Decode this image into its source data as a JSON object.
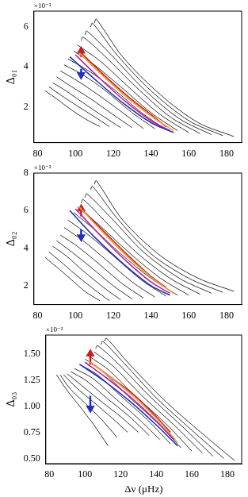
{
  "chart_data": [
    {
      "type": "line",
      "y_label": "Δ₀₁",
      "annotations": [
        "×10⁻³"
      ],
      "xlim": [
        78,
        188
      ],
      "xticks": [
        80,
        100,
        120,
        140,
        160,
        180
      ],
      "ylim": [
        0.2,
        6.8
      ],
      "yticks": [
        2,
        4,
        6
      ],
      "grid": false,
      "series": [
        {
          "color": "#000000",
          "x": [
            184,
            165,
            145,
            125,
            111,
            110
          ],
          "values": [
            0.5,
            1.2,
            2.6,
            4.5,
            6.4,
            6.2
          ]
        },
        {
          "color": "#000000",
          "x": [
            178,
            160,
            140,
            122,
            109,
            108
          ],
          "values": [
            0.55,
            1.3,
            2.8,
            4.6,
            6.2,
            6.0
          ]
        },
        {
          "color": "#000000",
          "x": [
            172,
            155,
            136,
            119,
            106,
            105
          ],
          "values": [
            0.6,
            1.4,
            2.9,
            4.6,
            5.8,
            5.6
          ]
        },
        {
          "color": "#000000",
          "x": [
            166,
            150,
            132,
            116,
            104,
            103
          ],
          "values": [
            0.65,
            1.5,
            3.0,
            4.5,
            5.5,
            5.3
          ]
        },
        {
          "color": "#000000",
          "x": [
            160,
            145,
            128,
            113,
            101
          ],
          "values": [
            0.7,
            1.6,
            3.0,
            4.3,
            5.1
          ]
        },
        {
          "color": "#000000",
          "x": [
            154,
            140,
            124,
            110,
            99
          ],
          "values": [
            0.8,
            1.7,
            3.0,
            4.1,
            4.8
          ]
        },
        {
          "color": "#000000",
          "x": [
            148,
            135,
            120,
            107,
            96
          ],
          "values": [
            0.85,
            1.7,
            2.9,
            3.8,
            4.4
          ]
        },
        {
          "color": "#000000",
          "x": [
            142,
            130,
            116,
            104,
            94
          ],
          "values": [
            0.9,
            1.7,
            2.8,
            3.6,
            4.1
          ]
        },
        {
          "color": "#000000",
          "x": [
            136,
            125,
            112,
            101,
            92
          ],
          "values": [
            0.9,
            1.7,
            2.6,
            3.3,
            3.8
          ]
        },
        {
          "color": "#000000",
          "x": [
            130,
            120,
            108,
            98,
            90
          ],
          "values": [
            0.95,
            1.6,
            2.4,
            3.0,
            3.5
          ]
        },
        {
          "color": "#000000",
          "x": [
            124,
            115,
            104,
            95,
            88
          ],
          "values": [
            0.95,
            1.5,
            2.2,
            2.8,
            3.2
          ]
        },
        {
          "color": "#000000",
          "x": [
            118,
            110,
            100,
            92,
            86
          ],
          "values": [
            1.0,
            1.5,
            2.1,
            2.6,
            3.0
          ]
        },
        {
          "color": "#000000",
          "x": [
            113,
            105,
            97,
            90,
            84
          ],
          "values": [
            1.0,
            1.4,
            1.9,
            2.4,
            2.8
          ]
        },
        {
          "color": "#2030c0",
          "x": [
            97,
            110,
            125,
            140,
            152
          ],
          "values": [
            4.5,
            3.4,
            2.2,
            1.2,
            0.7
          ]
        },
        {
          "color": "#c020a0",
          "x": [
            100,
            112,
            126,
            140,
            150
          ],
          "values": [
            4.6,
            3.5,
            2.3,
            1.3,
            0.8
          ]
        },
        {
          "color": "#f0a030",
          "x": [
            102,
            114,
            128,
            142,
            152
          ],
          "values": [
            4.7,
            3.6,
            2.4,
            1.4,
            0.8
          ]
        },
        {
          "color": "#c02020",
          "x": [
            103,
            115,
            128,
            140,
            148
          ],
          "values": [
            4.7,
            3.6,
            2.5,
            1.6,
            1.0
          ]
        },
        {
          "color": "#c02020",
          "marker": "triangle",
          "x": [
            103,
            103
          ],
          "values": [
            4.5,
            4.8
          ]
        },
        {
          "color": "#2030c0",
          "marker": "triangle",
          "x": [
            103,
            103
          ],
          "values": [
            3.9,
            3.6
          ]
        }
      ]
    },
    {
      "type": "line",
      "y_label": "Δ₀₂",
      "annotations": [
        "×10⁻³"
      ],
      "xlim": [
        78,
        188
      ],
      "xticks": [
        80,
        100,
        120,
        140,
        160,
        180
      ],
      "ylim": [
        1.0,
        8.0
      ],
      "yticks": [
        2,
        4,
        6,
        8
      ],
      "grid": false,
      "series": [
        {
          "color": "#000000",
          "x": [
            184,
            165,
            145,
            125,
            111,
            110
          ],
          "values": [
            1.7,
            2.4,
            3.6,
            5.5,
            7.6,
            7.4
          ]
        },
        {
          "color": "#000000",
          "x": [
            178,
            160,
            140,
            122,
            109,
            108
          ],
          "values": [
            1.65,
            2.4,
            3.7,
            5.6,
            7.3,
            7.1
          ]
        },
        {
          "color": "#000000",
          "x": [
            172,
            155,
            136,
            119,
            106,
            105
          ],
          "values": [
            1.6,
            2.4,
            3.8,
            5.6,
            6.9,
            6.7
          ]
        },
        {
          "color": "#000000",
          "x": [
            166,
            150,
            132,
            116,
            104,
            103
          ],
          "values": [
            1.55,
            2.4,
            3.8,
            5.4,
            6.6,
            6.4
          ]
        },
        {
          "color": "#000000",
          "x": [
            160,
            145,
            128,
            113,
            101
          ],
          "values": [
            1.5,
            2.4,
            3.8,
            5.2,
            6.2
          ]
        },
        {
          "color": "#000000",
          "x": [
            154,
            140,
            124,
            110,
            99
          ],
          "values": [
            1.5,
            2.4,
            3.7,
            5.0,
            5.9
          ]
        },
        {
          "color": "#000000",
          "x": [
            148,
            135,
            120,
            107,
            96
          ],
          "values": [
            1.45,
            2.3,
            3.6,
            4.7,
            5.5
          ]
        },
        {
          "color": "#000000",
          "x": [
            142,
            130,
            116,
            104,
            94
          ],
          "values": [
            1.4,
            2.2,
            3.4,
            4.4,
            5.1
          ]
        },
        {
          "color": "#000000",
          "x": [
            136,
            125,
            112,
            101,
            92
          ],
          "values": [
            1.35,
            2.1,
            3.2,
            4.1,
            4.7
          ]
        },
        {
          "color": "#000000",
          "x": [
            130,
            120,
            108,
            98,
            90
          ],
          "values": [
            1.3,
            2.0,
            3.0,
            3.8,
            4.4
          ]
        },
        {
          "color": "#000000",
          "x": [
            124,
            115,
            104,
            95,
            88
          ],
          "values": [
            1.25,
            1.9,
            2.8,
            3.6,
            4.1
          ]
        },
        {
          "color": "#000000",
          "x": [
            118,
            110,
            100,
            92,
            86
          ],
          "values": [
            1.2,
            1.8,
            2.6,
            3.3,
            3.8
          ]
        },
        {
          "color": "#000000",
          "x": [
            113,
            105,
            97,
            90,
            84
          ],
          "values": [
            1.2,
            1.7,
            2.4,
            3.0,
            3.5
          ]
        },
        {
          "color": "#2030c0",
          "x": [
            97,
            110,
            125,
            140,
            150
          ],
          "values": [
            6.0,
            4.6,
            3.2,
            2.0,
            1.5
          ]
        },
        {
          "color": "#c020a0",
          "x": [
            100,
            112,
            126,
            140,
            150
          ],
          "values": [
            6.1,
            4.8,
            3.4,
            2.2,
            1.6
          ]
        },
        {
          "color": "#f0a030",
          "x": [
            102,
            114,
            128,
            142,
            152
          ],
          "values": [
            6.2,
            4.9,
            3.5,
            2.3,
            1.6
          ]
        },
        {
          "color": "#c02020",
          "x": [
            103,
            115,
            128,
            140,
            148
          ],
          "values": [
            6.1,
            4.9,
            3.6,
            2.5,
            1.9
          ]
        },
        {
          "color": "#c02020",
          "marker": "triangle",
          "x": [
            103,
            103
          ],
          "values": [
            5.7,
            6.1
          ]
        },
        {
          "color": "#2030c0",
          "marker": "triangle",
          "x": [
            103,
            103
          ],
          "values": [
            5.0,
            4.6
          ]
        }
      ]
    },
    {
      "type": "line",
      "y_label": "Δ₀₃",
      "x_label": "Δν (μHz)",
      "annotations": [
        "×10⁻²"
      ],
      "xlim": [
        78,
        188
      ],
      "xticks": [
        80,
        100,
        120,
        140,
        160,
        180
      ],
      "ylim": [
        0.45,
        1.68
      ],
      "yticks": [
        {
          "value": 0.5,
          "label": "0.50"
        },
        {
          "value": 0.75,
          "label": "0.75"
        },
        {
          "value": 1.0,
          "label": "1.00"
        },
        {
          "value": 1.25,
          "label": "1.25"
        },
        {
          "value": 1.5,
          "label": "1.50"
        }
      ],
      "grid": false,
      "series": [
        {
          "color": "#000000",
          "x": [
            184,
            165,
            145,
            125,
            112,
            111
          ],
          "values": [
            0.48,
            0.75,
            1.05,
            1.4,
            1.65,
            1.62
          ]
        },
        {
          "color": "#000000",
          "x": [
            178,
            160,
            140,
            122,
            110,
            109
          ],
          "values": [
            0.5,
            0.77,
            1.08,
            1.41,
            1.62,
            1.59
          ]
        },
        {
          "color": "#000000",
          "x": [
            172,
            155,
            136,
            119,
            107,
            106
          ],
          "values": [
            0.52,
            0.8,
            1.1,
            1.4,
            1.58,
            1.55
          ]
        },
        {
          "color": "#000000",
          "x": [
            166,
            150,
            132,
            116,
            105
          ],
          "values": [
            0.55,
            0.82,
            1.1,
            1.38,
            1.52
          ]
        },
        {
          "color": "#000000",
          "x": [
            160,
            145,
            128,
            113,
            102
          ],
          "values": [
            0.57,
            0.84,
            1.1,
            1.35,
            1.48
          ]
        },
        {
          "color": "#000000",
          "x": [
            154,
            140,
            124,
            110,
            100
          ],
          "values": [
            0.6,
            0.85,
            1.1,
            1.33,
            1.45
          ]
        },
        {
          "color": "#000000",
          "x": [
            148,
            135,
            120,
            107,
            97
          ],
          "values": [
            0.64,
            0.87,
            1.1,
            1.3,
            1.4
          ]
        },
        {
          "color": "#000000",
          "x": [
            142,
            130,
            116,
            104,
            94
          ],
          "values": [
            0.68,
            0.88,
            1.09,
            1.27,
            1.36
          ]
        },
        {
          "color": "#000000",
          "x": [
            136,
            125,
            112,
            101,
            92
          ],
          "values": [
            0.72,
            0.9,
            1.08,
            1.24,
            1.33
          ]
        },
        {
          "color": "#000000",
          "x": [
            130,
            120,
            108,
            98,
            90
          ],
          "values": [
            0.75,
            0.9,
            1.06,
            1.2,
            1.31
          ]
        },
        {
          "color": "#000000",
          "x": [
            124,
            115,
            104,
            95,
            88
          ],
          "values": [
            0.75,
            0.89,
            1.05,
            1.18,
            1.3
          ]
        },
        {
          "color": "#000000",
          "x": [
            118,
            110,
            100,
            92,
            86
          ],
          "values": [
            0.7,
            0.86,
            1.03,
            1.16,
            1.3
          ]
        },
        {
          "color": "#000000",
          "x": [
            113,
            105,
            97,
            90,
            84
          ],
          "values": [
            0.62,
            0.82,
            1.0,
            1.15,
            1.3
          ]
        },
        {
          "color": "#2030c0",
          "x": [
            97,
            110,
            125,
            140,
            152
          ],
          "values": [
            1.4,
            1.25,
            1.05,
            0.82,
            0.62
          ]
        },
        {
          "color": "#c020a0",
          "x": [
            100,
            112,
            126,
            140,
            150
          ],
          "values": [
            1.42,
            1.27,
            1.08,
            0.86,
            0.68
          ]
        },
        {
          "color": "#f0a030",
          "x": [
            102,
            114,
            128,
            142,
            152
          ],
          "values": [
            1.43,
            1.28,
            1.08,
            0.85,
            0.65
          ]
        },
        {
          "color": "#c02020",
          "x": [
            103,
            115,
            128,
            140,
            148
          ],
          "values": [
            1.42,
            1.27,
            1.1,
            0.9,
            0.75
          ]
        },
        {
          "color": "#c02020",
          "marker": "triangle",
          "x": [
            103,
            103
          ],
          "values": [
            1.4,
            1.5
          ]
        },
        {
          "color": "#2030c0",
          "marker": "triangle",
          "x": [
            103,
            103
          ],
          "values": [
            1.1,
            0.98
          ]
        }
      ]
    }
  ]
}
